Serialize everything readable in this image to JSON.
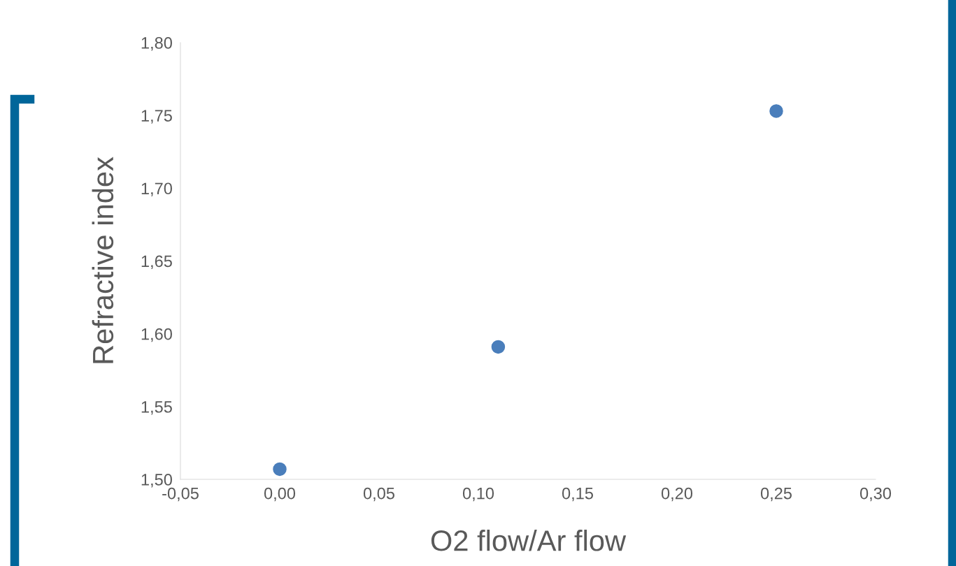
{
  "chart_data": {
    "type": "scatter",
    "xlabel": "O2 flow/Ar flow",
    "ylabel": "Refractive index",
    "x": [
      0.0,
      0.11,
      0.25
    ],
    "series": [
      {
        "color": "#4a7ebb",
        "values": [
          1.507,
          1.591,
          1.753
        ]
      }
    ],
    "marker": "circle",
    "xlim": [
      -0.05,
      0.3
    ],
    "xticks": [
      {
        "value": -0.05,
        "label": "-0,05"
      },
      {
        "value": 0,
        "label": "0,00"
      },
      {
        "value": 0.05,
        "label": "0,05"
      },
      {
        "value": 0.1,
        "label": "0,10"
      },
      {
        "value": 0.15,
        "label": "0,15"
      },
      {
        "value": 0.2,
        "label": "0,20"
      },
      {
        "value": 0.25,
        "label": "0,25"
      },
      {
        "value": 0.3,
        "label": "0,30"
      }
    ],
    "ylim": [
      1.5,
      1.8
    ],
    "yticks": [
      {
        "value": 1.5,
        "label": "1,50"
      },
      {
        "value": 1.55,
        "label": "1,55"
      },
      {
        "value": 1.6,
        "label": "1,60"
      },
      {
        "value": 1.65,
        "label": "1,65"
      },
      {
        "value": 1.7,
        "label": "1,70"
      },
      {
        "value": 1.75,
        "label": "1,75"
      },
      {
        "value": 1.8,
        "label": "1,80"
      }
    ]
  }
}
